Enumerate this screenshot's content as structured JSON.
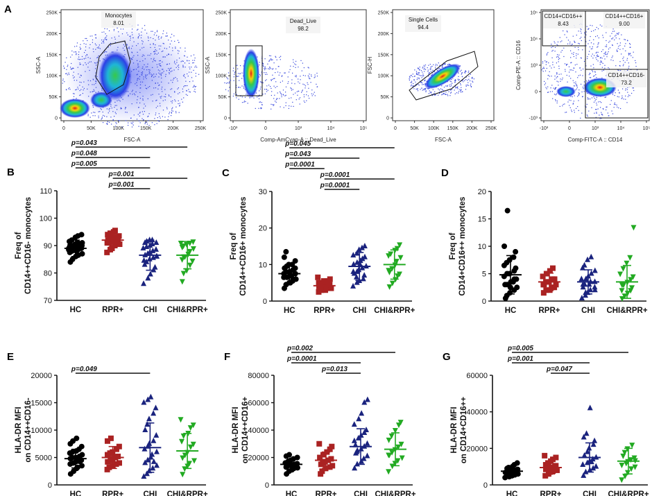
{
  "figure_label": "A",
  "flow_panels": [
    {
      "id": "fp1",
      "x_label": "FSC-A",
      "y_label": "SSC-A",
      "x_ticks": [
        "0",
        "50K",
        "100K",
        "150K",
        "200K",
        "250K"
      ],
      "y_ticks": [
        "0",
        "50K",
        "100K",
        "150K",
        "200K",
        "250K"
      ],
      "gates": [
        {
          "name": "Monocytes",
          "value": "8.01"
        }
      ]
    },
    {
      "id": "fp2",
      "x_label": "Comp-AmCyan-A :: Dead_Live",
      "y_label": "SSC-A",
      "x_ticks": [
        "-10³",
        "0",
        "10³",
        "10⁴",
        "10⁵"
      ],
      "y_ticks": [
        "0",
        "50K",
        "100K",
        "150K",
        "200K",
        "250K"
      ],
      "gates": [
        {
          "name": "Dead_Live",
          "value": "98.2"
        }
      ]
    },
    {
      "id": "fp3",
      "x_label": "FSC-A",
      "y_label": "FSC-H",
      "x_ticks": [
        "0",
        "50K",
        "100K",
        "150K",
        "200K",
        "250K"
      ],
      "y_ticks": [
        "0",
        "50K",
        "100K",
        "150K",
        "200K",
        "250K"
      ],
      "gates": [
        {
          "name": "Single Cells",
          "value": "94.4"
        }
      ]
    },
    {
      "id": "fp4",
      "x_label": "Comp-FITC-A :: CD14",
      "y_label": "Comp-PE-A :: CD16",
      "x_ticks": [
        "-10³",
        "0",
        "10³",
        "10⁴",
        "10⁵"
      ],
      "y_ticks": [
        "-10³",
        "0",
        "10³",
        "10⁴",
        "10⁵"
      ],
      "gates": [
        {
          "name": "CD14+CD16++",
          "value": "8.43"
        },
        {
          "name": "CD14++CD16+",
          "value": "9.00"
        },
        {
          "name": "CD14++CD16-",
          "value": "73.2"
        }
      ]
    }
  ],
  "chart_data": [
    {
      "panel": "B",
      "type": "scatter",
      "ylabel_line1": "Freq of",
      "ylabel_line2": "CD14++CD16- monocytes",
      "categories": [
        "HC",
        "RPR+",
        "CHI",
        "CHI&RPR+"
      ],
      "ylim": [
        70,
        110
      ],
      "yticks": [
        "70",
        "80",
        "90",
        "100",
        "110"
      ],
      "series": [
        {
          "name": "HC",
          "mean": 89,
          "sd": 3,
          "color": "#000000",
          "marker": "circle",
          "values": [
            84,
            85,
            86,
            86.5,
            87,
            87.5,
            88,
            88,
            88.5,
            89,
            89,
            89,
            89.5,
            89.5,
            90,
            90,
            90,
            90.5,
            91,
            91,
            91.5,
            92,
            93,
            93.5,
            94,
            88.5
          ]
        },
        {
          "name": "RPR+",
          "mean": 92,
          "sd": 2.5,
          "color": "#aa2222",
          "marker": "square",
          "values": [
            87.5,
            88.5,
            89,
            90,
            90.5,
            91,
            91,
            91.5,
            91.5,
            92,
            92,
            92.5,
            93,
            93,
            93.5,
            94,
            94.5,
            95,
            95.5
          ]
        },
        {
          "name": "CHI",
          "mean": 86.5,
          "sd": 5.5,
          "color": "#1a237e",
          "marker": "triangle-up",
          "values": [
            76,
            78,
            79.5,
            81,
            82,
            83,
            84,
            85,
            85.5,
            86,
            86.5,
            87,
            87.5,
            88,
            88.5,
            89,
            89.5,
            90,
            90.5,
            91,
            91,
            91.5,
            92,
            92,
            86,
            84.5
          ]
        },
        {
          "name": "CHI&RPR+",
          "mean": 86.5,
          "sd": 5,
          "color": "#22aa22",
          "marker": "triangle-down",
          "values": [
            77,
            80,
            81,
            83,
            84.5,
            85,
            86,
            87,
            88,
            89,
            89.5,
            90,
            90.5,
            91,
            91.5,
            91,
            86
          ]
        }
      ],
      "pvalues": [
        {
          "label": "p=0.043",
          "from": "HC",
          "to": "CHI&RPR+",
          "level": 0
        },
        {
          "label": "p=0.048",
          "from": "HC",
          "to": "CHI",
          "level": 1
        },
        {
          "label": "p=0.005",
          "from": "HC",
          "to": "CHI",
          "level": 2
        },
        {
          "label": "p=0.001",
          "from": "RPR+",
          "to": "CHI&RPR+",
          "level": 3
        },
        {
          "label": "p=0.001",
          "from": "RPR+",
          "to": "CHI",
          "level": 4
        }
      ]
    },
    {
      "panel": "C",
      "type": "scatter",
      "ylabel_line1": "Freq of",
      "ylabel_line2": "CD14++CD16+ monocytes",
      "categories": [
        "HC",
        "RPR+",
        "CHI",
        "CHI&RPR+"
      ],
      "ylim": [
        0,
        30
      ],
      "yticks": [
        "0",
        "10",
        "20",
        "30"
      ],
      "series": [
        {
          "name": "HC",
          "mean": 7.5,
          "sd": 2.5,
          "color": "#000000",
          "marker": "circle",
          "values": [
            3.5,
            4.5,
            5,
            5.5,
            6,
            6.5,
            6.5,
            7,
            7,
            7.5,
            7.5,
            8,
            8,
            8.5,
            9,
            9,
            9.5,
            10,
            10,
            11,
            12,
            13.5,
            5,
            6
          ]
        },
        {
          "name": "RPR+",
          "mean": 4.2,
          "sd": 1.3,
          "color": "#aa2222",
          "marker": "square",
          "values": [
            2.5,
            3,
            3,
            3.5,
            3.5,
            4,
            4,
            4,
            4.5,
            4.5,
            5,
            5,
            5.5,
            5.5,
            6,
            6.5,
            3
          ]
        },
        {
          "name": "CHI",
          "mean": 9.5,
          "sd": 3.8,
          "color": "#1a237e",
          "marker": "triangle-up",
          "values": [
            4,
            5,
            5.5,
            6,
            7,
            7.5,
            8,
            8.5,
            9,
            9.5,
            10,
            10.5,
            11,
            11.5,
            12,
            12.5,
            13,
            14,
            14.5,
            15,
            8,
            6.5,
            10
          ]
        },
        {
          "name": "CHI&RPR+",
          "mean": 10,
          "sd": 4,
          "color": "#22aa22",
          "marker": "triangle-down",
          "values": [
            4,
            5,
            6,
            7,
            7.5,
            8,
            9,
            10,
            11,
            12,
            12.5,
            13,
            14,
            14.5,
            15.5,
            8.5
          ]
        }
      ],
      "pvalues": [
        {
          "label": "p=0.045",
          "from": "HC",
          "to": "CHI&RPR+",
          "level": 0
        },
        {
          "label": "p=0.043",
          "from": "HC",
          "to": "CHI",
          "level": 1
        },
        {
          "label": "p=0.0001",
          "from": "HC",
          "to": "RPR+",
          "level": 2
        },
        {
          "label": "p=0.0001",
          "from": "RPR+",
          "to": "CHI&RPR+",
          "level": 3
        },
        {
          "label": "p=0.0001",
          "from": "RPR+",
          "to": "CHI",
          "level": 4
        }
      ]
    },
    {
      "panel": "D",
      "type": "scatter",
      "ylabel_line1": "Freq of",
      "ylabel_line2": "CD14+CD16++ monocytes",
      "categories": [
        "HC",
        "RPR+",
        "CHI",
        "CHI&RPR+"
      ],
      "ylim": [
        0,
        20
      ],
      "yticks": [
        "0",
        "5",
        "10",
        "15",
        "20"
      ],
      "series": [
        {
          "name": "HC",
          "mean": 4.8,
          "sd": 3.5,
          "color": "#000000",
          "marker": "circle",
          "values": [
            0.5,
            1,
            1.5,
            2,
            2.5,
            3,
            3,
            3.5,
            4,
            4,
            4.5,
            5,
            5,
            5.5,
            6,
            6.5,
            7,
            7.5,
            8,
            9,
            10,
            16.5,
            2.5,
            3.5
          ]
        },
        {
          "name": "RPR+",
          "mean": 3.5,
          "sd": 1.6,
          "color": "#aa2222",
          "marker": "square",
          "values": [
            1.5,
            2,
            2,
            2.5,
            3,
            3,
            3.5,
            3.5,
            4,
            4,
            4.5,
            5,
            5.5,
            6,
            2.5,
            3
          ]
        },
        {
          "name": "CHI",
          "mean": 3.5,
          "sd": 2.2,
          "color": "#1a237e",
          "marker": "triangle-up",
          "values": [
            0.5,
            1,
            1.5,
            2,
            2,
            2.5,
            3,
            3,
            3.5,
            3.5,
            4,
            4,
            4.5,
            5,
            5.5,
            6,
            6.5,
            7.5,
            8,
            2.5,
            3,
            1.5
          ]
        },
        {
          "name": "CHI&RPR+",
          "mean": 3.5,
          "sd": 3,
          "color": "#22aa22",
          "marker": "triangle-down",
          "values": [
            0.5,
            1,
            1.5,
            2,
            2.5,
            3,
            3,
            3.5,
            4,
            4.5,
            5,
            6,
            7,
            8,
            13.5,
            2
          ]
        }
      ],
      "pvalues": []
    },
    {
      "panel": "E",
      "type": "scatter",
      "ylabel_line1": "HLA-DR MFI",
      "ylabel_line2": "on CD14++CD16-",
      "categories": [
        "HC",
        "RPR+",
        "CHI",
        "CHI&RPR+"
      ],
      "ylim": [
        0,
        20000
      ],
      "yticks": [
        "0",
        "5000",
        "10000",
        "15000",
        "20000"
      ],
      "series": [
        {
          "name": "HC",
          "mean": 4800,
          "sd": 1700,
          "color": "#000000",
          "marker": "circle",
          "values": [
            2000,
            2500,
            3000,
            3200,
            3500,
            3800,
            4000,
            4200,
            4500,
            4500,
            4800,
            5000,
            5000,
            5200,
            5500,
            5800,
            6000,
            6200,
            6500,
            7000,
            7500,
            8000,
            8500,
            4300
          ]
        },
        {
          "name": "RPR+",
          "mean": 5000,
          "sd": 2000,
          "color": "#aa2222",
          "marker": "square",
          "values": [
            2800,
            3200,
            3500,
            3800,
            4000,
            4200,
            4500,
            4800,
            5000,
            5200,
            5500,
            5800,
            6000,
            6500,
            7000,
            8000,
            8500,
            4600
          ]
        },
        {
          "name": "CHI",
          "mean": 6800,
          "sd": 4500,
          "color": "#1a237e",
          "marker": "triangle-up",
          "values": [
            1500,
            2000,
            2500,
            3000,
            3500,
            4000,
            4500,
            5000,
            5500,
            6000,
            6500,
            7000,
            7500,
            8000,
            9000,
            10000,
            11000,
            12000,
            13000,
            14000,
            15000,
            15500,
            16000,
            4200
          ]
        },
        {
          "name": "CHI&RPR+",
          "mean": 6200,
          "sd": 3200,
          "color": "#22aa22",
          "marker": "triangle-down",
          "values": [
            2000,
            3000,
            3500,
            4000,
            4500,
            5000,
            5500,
            6000,
            7000,
            7500,
            8000,
            9000,
            9500,
            10500,
            11000,
            12000
          ]
        }
      ],
      "pvalues": [
        {
          "label": "p=0.049",
          "from": "HC",
          "to": "CHI",
          "level": 0
        }
      ]
    },
    {
      "panel": "F",
      "type": "scatter",
      "ylabel_line1": "HLA-DR MFI",
      "ylabel_line2": "on CD14++CD16+",
      "categories": [
        "HC",
        "RPR+",
        "CHI",
        "CHI&RPR+"
      ],
      "ylim": [
        0,
        80000
      ],
      "yticks": [
        "0",
        "20000",
        "40000",
        "60000",
        "80000"
      ],
      "series": [
        {
          "name": "HC",
          "mean": 15000,
          "sd": 4000,
          "color": "#000000",
          "marker": "circle",
          "values": [
            8000,
            10000,
            11000,
            12000,
            12500,
            13000,
            14000,
            14500,
            15000,
            15500,
            16000,
            17000,
            18000,
            19000,
            20000,
            21000,
            22000,
            13500
          ]
        },
        {
          "name": "RPR+",
          "mean": 18000,
          "sd": 6000,
          "color": "#aa2222",
          "marker": "square",
          "values": [
            8000,
            10000,
            12000,
            13000,
            14000,
            15000,
            16000,
            17000,
            18000,
            19000,
            20000,
            22000,
            24000,
            26000,
            28000,
            30000,
            16500
          ]
        },
        {
          "name": "CHI",
          "mean": 28000,
          "sd": 13000,
          "color": "#1a237e",
          "marker": "triangle-up",
          "values": [
            12000,
            15000,
            17000,
            19000,
            21000,
            23000,
            25000,
            26000,
            28000,
            30000,
            32000,
            34000,
            36000,
            38000,
            40000,
            44000,
            48000,
            52000,
            60000,
            62000,
            29000,
            24000
          ]
        },
        {
          "name": "CHI&RPR+",
          "mean": 26000,
          "sd": 12000,
          "color": "#22aa22",
          "marker": "triangle-down",
          "values": [
            10000,
            14000,
            16000,
            18000,
            20000,
            22000,
            24000,
            26000,
            28000,
            30000,
            33000,
            36000,
            40000,
            44000,
            46000,
            22000
          ]
        }
      ],
      "pvalues": [
        {
          "label": "p=0.002",
          "from": "HC",
          "to": "CHI&RPR+",
          "level": 0
        },
        {
          "label": "p=0.0001",
          "from": "HC",
          "to": "CHI",
          "level": 1
        },
        {
          "label": "p=0.013",
          "from": "RPR+",
          "to": "CHI",
          "level": 2
        }
      ]
    },
    {
      "panel": "G",
      "type": "scatter",
      "ylabel_line1": "HLA-DR MFI",
      "ylabel_line2": "on CD14+CD16++",
      "categories": [
        "HC",
        "RPR+",
        "CHI",
        "CHI&RPR+"
      ],
      "ylim": [
        0,
        60000
      ],
      "yticks": [
        "0",
        "20000",
        "40000",
        "60000"
      ],
      "series": [
        {
          "name": "HC",
          "mean": 7500,
          "sd": 2500,
          "color": "#000000",
          "marker": "circle",
          "values": [
            4000,
            4500,
            5000,
            5500,
            6000,
            6500,
            7000,
            7500,
            8000,
            8500,
            9000,
            9500,
            10000,
            11000,
            12000,
            6800,
            7200,
            5800
          ]
        },
        {
          "name": "RPR+",
          "mean": 9500,
          "sd": 3500,
          "color": "#aa2222",
          "marker": "square",
          "values": [
            5000,
            6000,
            7000,
            7500,
            8000,
            8500,
            9000,
            9500,
            10000,
            10500,
            11000,
            12000,
            13000,
            14000,
            15000,
            16000,
            8800
          ]
        },
        {
          "name": "CHI",
          "mean": 15000,
          "sd": 8000,
          "color": "#1a237e",
          "marker": "triangle-up",
          "values": [
            5000,
            7000,
            8000,
            9000,
            10000,
            11000,
            12000,
            13000,
            14000,
            15000,
            16000,
            18000,
            20000,
            22000,
            24000,
            26000,
            28000,
            42000,
            12500
          ]
        },
        {
          "name": "CHI&RPR+",
          "mean": 13000,
          "sd": 7000,
          "color": "#22aa22",
          "marker": "triangle-down",
          "values": [
            3000,
            5000,
            7000,
            9000,
            10000,
            11000,
            12000,
            13000,
            14000,
            15000,
            16000,
            18000,
            20000,
            22000,
            13500
          ]
        }
      ],
      "pvalues": [
        {
          "label": "p=0.005",
          "from": "HC",
          "to": "CHI&RPR+",
          "level": 0
        },
        {
          "label": "p=0.001",
          "from": "HC",
          "to": "CHI",
          "level": 1
        },
        {
          "label": "p=0.047",
          "from": "RPR+",
          "to": "CHI",
          "level": 2
        }
      ]
    }
  ]
}
